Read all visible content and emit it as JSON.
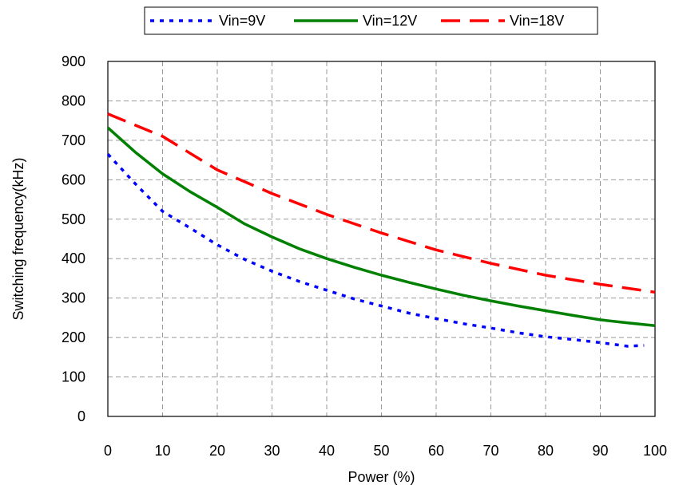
{
  "chart_data": {
    "type": "line",
    "xlabel": "Power (%)",
    "ylabel": "Switching frequency(kHz)",
    "xlim": [
      0,
      100
    ],
    "ylim": [
      0,
      900
    ],
    "x_ticks": [
      0,
      10,
      20,
      30,
      40,
      50,
      60,
      70,
      80,
      90,
      100
    ],
    "y_ticks": [
      0,
      100,
      200,
      300,
      400,
      500,
      600,
      700,
      800,
      900
    ],
    "grid": true,
    "legend_position": "top-center",
    "series": [
      {
        "name": "Vin=9V",
        "color": "#0000ff",
        "style": "dotted",
        "x": [
          0,
          5,
          10,
          15,
          20,
          25,
          30,
          35,
          40,
          45,
          50,
          55,
          60,
          65,
          70,
          75,
          80,
          85,
          90,
          95,
          98
        ],
        "y": [
          665,
          590,
          520,
          478,
          435,
          398,
          368,
          342,
          320,
          298,
          280,
          262,
          248,
          235,
          224,
          212,
          202,
          195,
          187,
          178,
          180
        ]
      },
      {
        "name": "Vin=12V",
        "color": "#008000",
        "style": "solid",
        "x": [
          0,
          5,
          10,
          15,
          20,
          25,
          30,
          35,
          40,
          45,
          50,
          55,
          60,
          65,
          70,
          75,
          80,
          85,
          90,
          95,
          100
        ],
        "y": [
          732,
          670,
          615,
          570,
          530,
          488,
          455,
          425,
          400,
          378,
          358,
          340,
          323,
          307,
          293,
          280,
          268,
          256,
          245,
          237,
          230
        ]
      },
      {
        "name": "Vin=18V",
        "color": "#ff0000",
        "style": "dashed",
        "x": [
          0,
          10,
          20,
          30,
          40,
          50,
          60,
          70,
          80,
          90,
          100
        ],
        "y": [
          767,
          710,
          625,
          565,
          512,
          465,
          422,
          388,
          358,
          335,
          315
        ]
      }
    ]
  }
}
